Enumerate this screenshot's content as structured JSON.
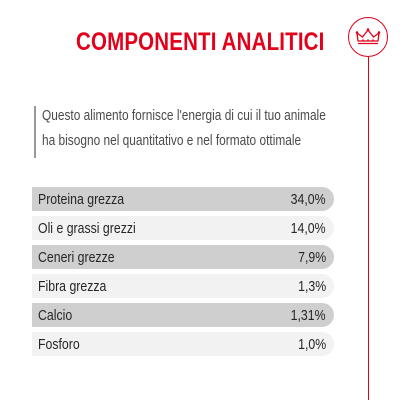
{
  "header": {
    "title": "COMPONENTI ANALITICI",
    "logo_icon": "royal-crown-icon"
  },
  "intro": {
    "line1": "Questo alimento fornisce l'energia di cui il tuo animale",
    "line2": "ha bisogno nel quantitativo e nel formato ottimale"
  },
  "components": [
    {
      "label": "Proteina grezza",
      "value": "34,0%"
    },
    {
      "label": "Oli e grassi grezzi",
      "value": "14,0%"
    },
    {
      "label": "Ceneri grezze",
      "value": "7,9%"
    },
    {
      "label": "Fibra grezza",
      "value": "1,3%"
    },
    {
      "label": "Calcio",
      "value": "1,31%"
    },
    {
      "label": "Fosforo",
      "value": "1,0%"
    }
  ],
  "colors": {
    "brand_red": "#e2001a",
    "row_shaded": "#cfcfcf",
    "row_plain": "#f2f2f2",
    "text_dark": "#262626",
    "text_gray": "#4a4a4a"
  }
}
